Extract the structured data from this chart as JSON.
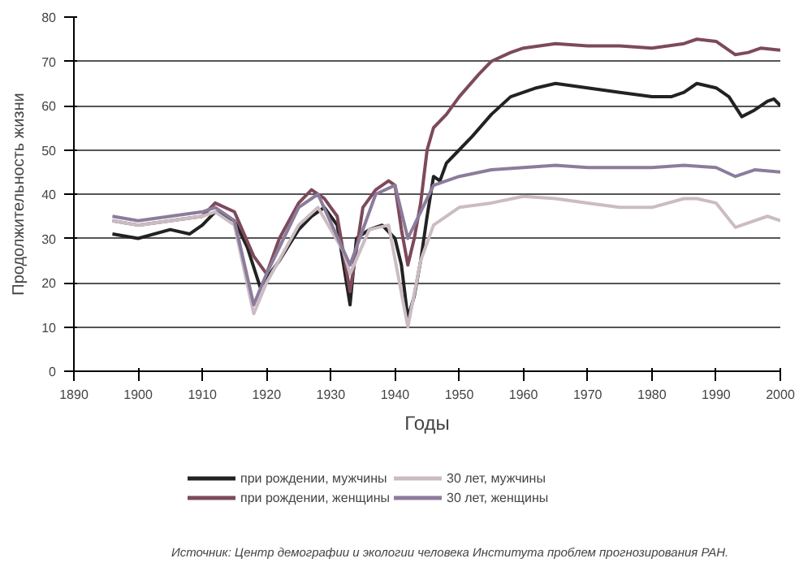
{
  "chart_data": {
    "type": "line",
    "xlabel": "Годы",
    "ylabel": "Продолжительность жизни",
    "xlim": [
      1890,
      2000
    ],
    "xticks": [
      1890,
      1900,
      1910,
      1920,
      1930,
      1940,
      1950,
      1960,
      1970,
      1980,
      1990,
      2000
    ],
    "ylim": [
      0,
      80
    ],
    "yticks": [
      0,
      10,
      20,
      30,
      40,
      50,
      60,
      70,
      80
    ],
    "grid": "y",
    "legend": "bottom",
    "line_style": "solid",
    "marker": "none",
    "annotations": [
      "Источник: Центр демографии и экологии человека Института проблем прогнозирования РАН."
    ],
    "series": [
      {
        "name": "при рождении, мужчины",
        "color": "#222222",
        "x": [
          1896,
          1900,
          1905,
          1908,
          1910,
          1912,
          1915,
          1917,
          1919,
          1920,
          1922,
          1925,
          1927,
          1929,
          1931,
          1933,
          1934,
          1936,
          1938,
          1940,
          1941,
          1942,
          1943,
          1944,
          1945,
          1946,
          1947,
          1948,
          1950,
          1952,
          1955,
          1958,
          1960,
          1962,
          1965,
          1970,
          1975,
          1980,
          1983,
          1985,
          1987,
          1990,
          1992,
          1994,
          1996,
          1998,
          1999,
          2000
        ],
        "values": [
          31,
          30,
          32,
          31,
          33,
          36,
          34,
          28,
          19,
          21,
          25,
          32,
          35,
          37,
          33,
          15,
          30,
          32,
          33,
          30,
          24,
          12,
          17,
          25,
          35,
          44,
          43,
          47,
          50,
          53,
          58,
          62,
          63,
          64,
          65,
          64,
          63,
          62,
          62,
          63,
          65,
          64,
          62,
          57.5,
          59,
          61,
          61.5,
          60
        ]
      },
      {
        "name": "при рождении, женщины",
        "color": "#7d4a5a",
        "x": [
          1896,
          1900,
          1905,
          1910,
          1912,
          1915,
          1918,
          1920,
          1922,
          1925,
          1927,
          1929,
          1931,
          1933,
          1935,
          1937,
          1939,
          1940,
          1941,
          1942,
          1943,
          1944,
          1945,
          1946,
          1948,
          1950,
          1953,
          1955,
          1958,
          1960,
          1965,
          1970,
          1975,
          1980,
          1985,
          1987,
          1990,
          1993,
          1995,
          1997,
          2000
        ],
        "values": [
          34,
          33,
          34,
          35,
          38,
          36,
          26,
          22,
          30,
          38,
          41,
          39,
          35,
          18,
          37,
          41,
          43,
          42,
          32,
          24,
          30,
          38,
          50,
          55,
          58,
          62,
          67,
          70,
          72,
          73,
          74,
          73.5,
          73.5,
          73,
          74,
          75,
          74.5,
          71.5,
          72,
          73,
          72.5
        ]
      },
      {
        "name": "30 лет, мужчины",
        "color": "#cbbcc4",
        "x": [
          1896,
          1900,
          1905,
          1910,
          1912,
          1915,
          1918,
          1920,
          1925,
          1928,
          1932,
          1933,
          1936,
          1939,
          1942,
          1944,
          1946,
          1950,
          1955,
          1960,
          1965,
          1970,
          1975,
          1980,
          1985,
          1987,
          1990,
          1993,
          1996,
          1998,
          2000
        ],
        "values": [
          34,
          33,
          34,
          35,
          36,
          33,
          13,
          20,
          33,
          37,
          27,
          22,
          32,
          33,
          10,
          25,
          33,
          37,
          38,
          39.5,
          39,
          38,
          37,
          37,
          39,
          39,
          38,
          32.5,
          34,
          35,
          34
        ]
      },
      {
        "name": "30 лет, женщины",
        "color": "#8c7c9c",
        "x": [
          1896,
          1900,
          1905,
          1910,
          1912,
          1915,
          1918,
          1920,
          1925,
          1928,
          1933,
          1937,
          1940,
          1942,
          1944,
          1946,
          1950,
          1955,
          1960,
          1965,
          1970,
          1975,
          1980,
          1985,
          1990,
          1993,
          1996,
          2000
        ],
        "values": [
          35,
          34,
          35,
          36,
          37,
          34,
          15,
          22,
          37,
          40,
          24,
          40,
          42,
          30,
          36,
          42,
          44,
          45.5,
          46,
          46.5,
          46,
          46,
          46,
          46.5,
          46,
          44,
          45.5,
          45
        ]
      }
    ]
  }
}
